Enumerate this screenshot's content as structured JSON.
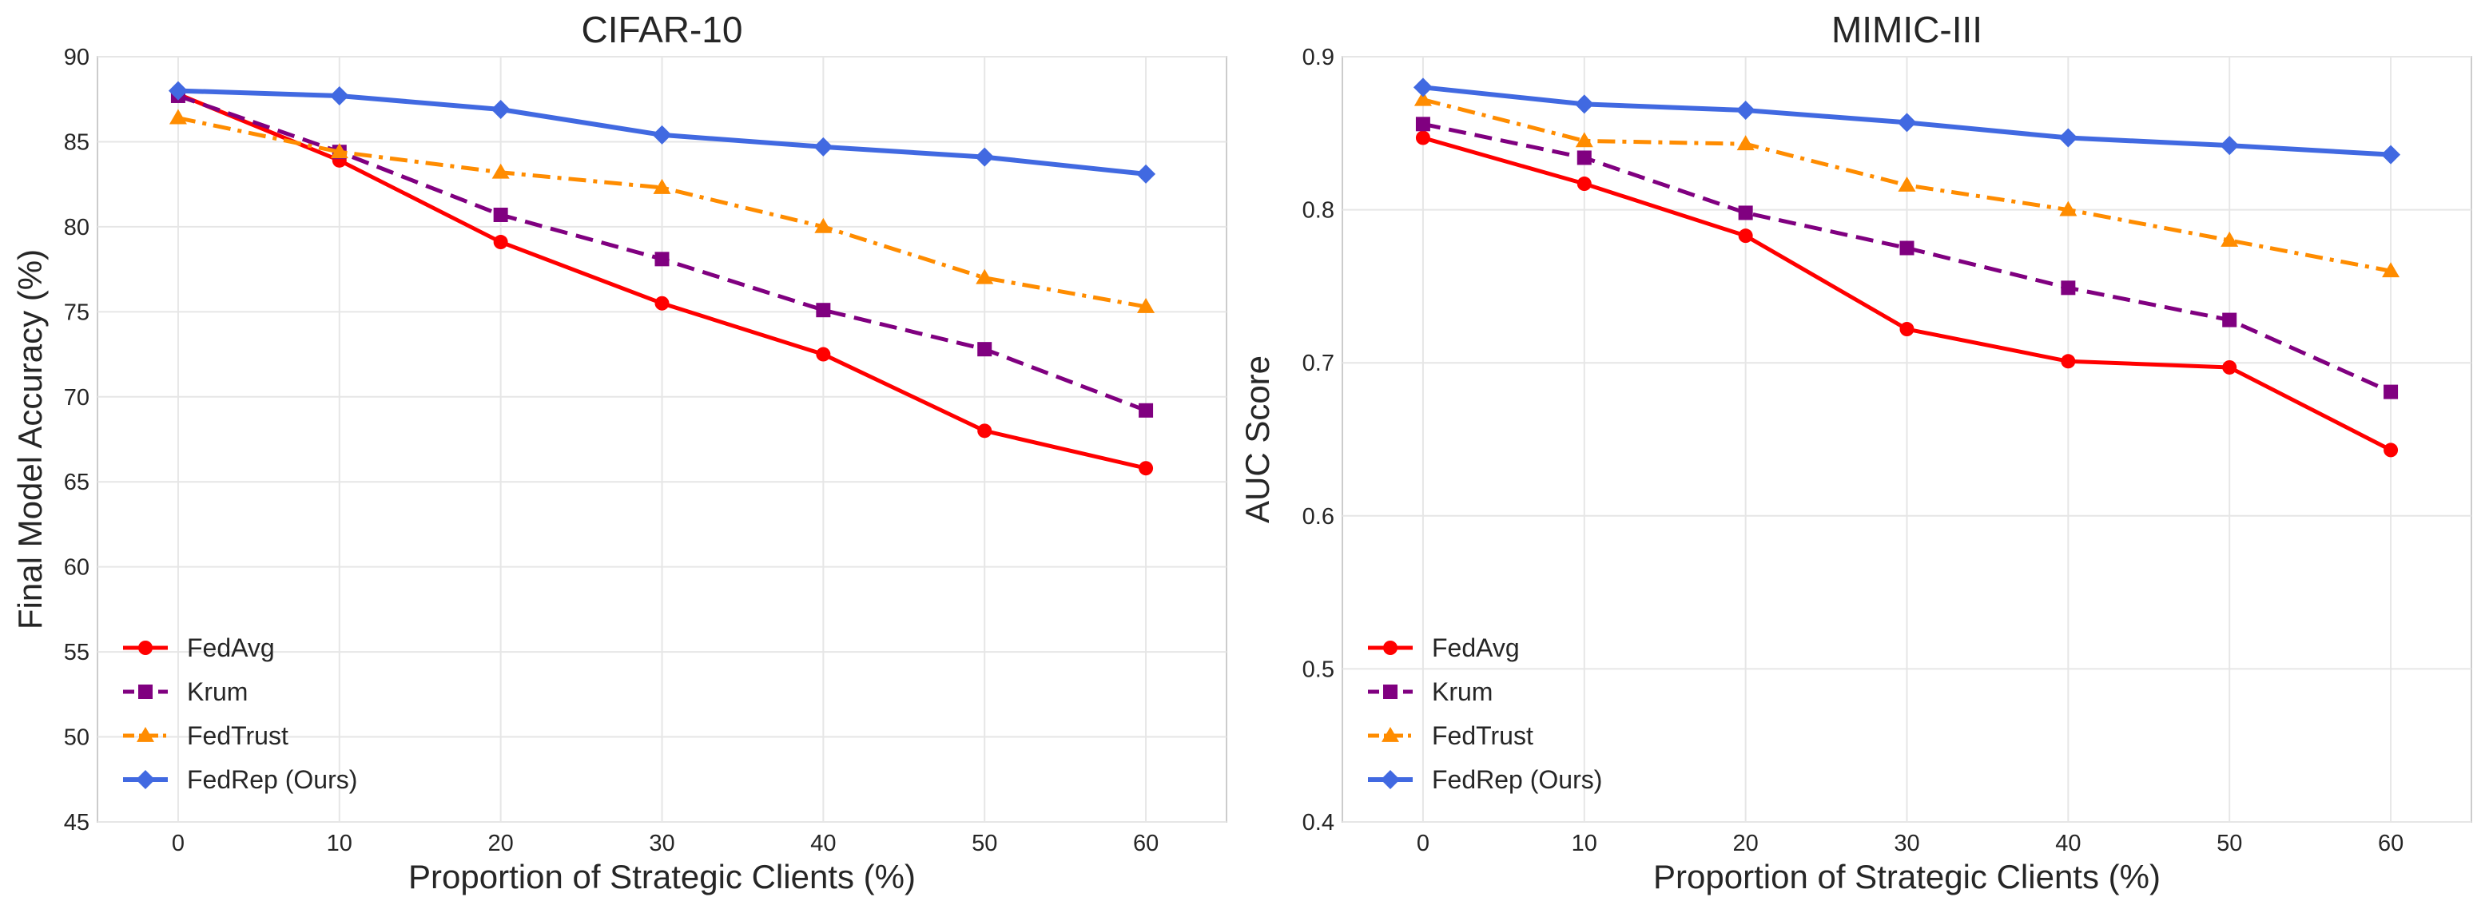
{
  "chart_data": [
    {
      "type": "line",
      "title": "CIFAR-10",
      "xlabel": "Proportion of Strategic Clients (%)",
      "ylabel": "Final Model Accuracy (%)",
      "x": [
        0,
        10,
        20,
        30,
        40,
        50,
        60
      ],
      "xlim": [
        -5,
        65
      ],
      "ylim": [
        45,
        90
      ],
      "xticks": [
        0,
        10,
        20,
        30,
        40,
        50,
        60
      ],
      "yticks": [
        45,
        50,
        55,
        60,
        65,
        70,
        75,
        80,
        85,
        90
      ],
      "xtick_labels": [
        "0",
        "10",
        "20",
        "30",
        "40",
        "50",
        "60"
      ],
      "ytick_labels": [
        "45",
        "50",
        "55",
        "60",
        "65",
        "70",
        "75",
        "80",
        "85",
        "90"
      ],
      "grid": true,
      "legend_position": "lower-left",
      "series": [
        {
          "name": "FedAvg",
          "values": [
            87.8,
            83.9,
            79.1,
            75.5,
            72.5,
            68.0,
            65.8
          ]
        },
        {
          "name": "Krum",
          "values": [
            87.7,
            84.4,
            80.7,
            78.1,
            75.1,
            72.8,
            69.2
          ]
        },
        {
          "name": "FedTrust",
          "values": [
            86.4,
            84.4,
            83.2,
            82.3,
            80.0,
            77.0,
            75.3
          ]
        },
        {
          "name": "FedRep (Ours)",
          "values": [
            88.0,
            87.7,
            86.9,
            85.4,
            84.7,
            84.1,
            83.1
          ]
        }
      ]
    },
    {
      "type": "line",
      "title": "MIMIC-III",
      "xlabel": "Proportion of Strategic Clients (%)",
      "ylabel": "AUC Score",
      "x": [
        0,
        10,
        20,
        30,
        40,
        50,
        60
      ],
      "xlim": [
        -5,
        65
      ],
      "ylim": [
        0.4,
        0.9
      ],
      "xticks": [
        0,
        10,
        20,
        30,
        40,
        50,
        60
      ],
      "yticks": [
        0.4,
        0.5,
        0.6,
        0.7,
        0.8,
        0.9
      ],
      "xtick_labels": [
        "0",
        "10",
        "20",
        "30",
        "40",
        "50",
        "60"
      ],
      "ytick_labels": [
        "0.4",
        "0.5",
        "0.6",
        "0.7",
        "0.8",
        "0.9"
      ],
      "grid": true,
      "legend_position": "lower-left",
      "series": [
        {
          "name": "FedAvg",
          "values": [
            0.847,
            0.817,
            0.783,
            0.722,
            0.701,
            0.697,
            0.643
          ]
        },
        {
          "name": "Krum",
          "values": [
            0.856,
            0.834,
            0.798,
            0.775,
            0.749,
            0.728,
            0.681
          ]
        },
        {
          "name": "FedTrust",
          "values": [
            0.872,
            0.845,
            0.843,
            0.816,
            0.8,
            0.78,
            0.76
          ]
        },
        {
          "name": "FedRep (Ours)",
          "values": [
            0.88,
            0.869,
            0.865,
            0.857,
            0.847,
            0.842,
            0.836
          ]
        }
      ]
    }
  ],
  "series_styles": [
    {
      "color": "#ff0000",
      "marker": "circle",
      "dash": "solid"
    },
    {
      "color": "#800080",
      "marker": "square",
      "dash": "dashed"
    },
    {
      "color": "#ff8c00",
      "marker": "triangle",
      "dash": "dashdot"
    },
    {
      "color": "#4169e1",
      "marker": "diamond",
      "dash": "solid"
    }
  ]
}
